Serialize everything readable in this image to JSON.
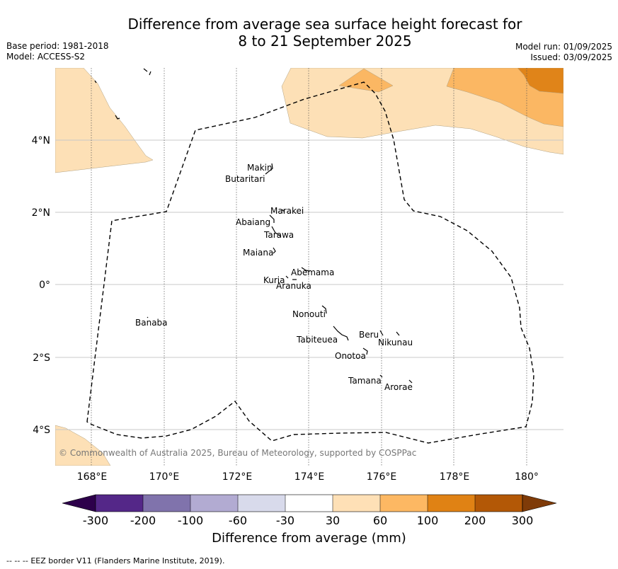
{
  "header": {
    "title_line1": "Difference from average sea surface height forecast for",
    "title_line2": "8 to 21 September 2025",
    "base_period": "Base period: 1981-2018",
    "model": "Model: ACCESS-S2",
    "model_run": "Model run: 01/09/2025",
    "issued": "Issued: 03/09/2025"
  },
  "map": {
    "lon_labels": [
      "168°E",
      "170°E",
      "172°E",
      "174°E",
      "176°E",
      "178°E",
      "180°"
    ],
    "lat_labels": [
      "4°N",
      "2°N",
      "0°",
      "2°S",
      "4°S"
    ],
    "copyright": "© Commonwealth of Australia 2025, Bureau of Meteorology, supported by COSPPac",
    "islands": [
      {
        "name": "Makin"
      },
      {
        "name": "Butaritari"
      },
      {
        "name": "Marakei"
      },
      {
        "name": "Abaiang"
      },
      {
        "name": "Tarawa"
      },
      {
        "name": "Maiana"
      },
      {
        "name": "Abemama"
      },
      {
        "name": "Kuria"
      },
      {
        "name": "Aranuka"
      },
      {
        "name": "Nonouti"
      },
      {
        "name": "Banaba"
      },
      {
        "name": "Beru"
      },
      {
        "name": "Tabiteuea"
      },
      {
        "name": "Nikunau"
      },
      {
        "name": "Onotoa"
      },
      {
        "name": "Tamana"
      },
      {
        "name": "Arorae"
      }
    ],
    "colors": {
      "30_60": "#fde0b6",
      "60_100": "#fbb763",
      "100_200": "#e08419",
      "200_300": "#b35806"
    }
  },
  "colorbar": {
    "title": "Difference from average (mm)",
    "ticks": [
      "-300",
      "-200",
      "-100",
      "-60",
      "-30",
      "30",
      "60",
      "100",
      "200",
      "300"
    ],
    "colors": [
      "#2d004b",
      "#542788",
      "#8073ac",
      "#b2abd2",
      "#d8daeb",
      "#ffffff",
      "#fee0b6",
      "#fdb863",
      "#e08214",
      "#b35806",
      "#7f3b08"
    ]
  },
  "footer": {
    "legend_symbol": "-- -- --",
    "legend_text": "EEZ border V11 (Flanders Marine Institute, 2019)."
  }
}
